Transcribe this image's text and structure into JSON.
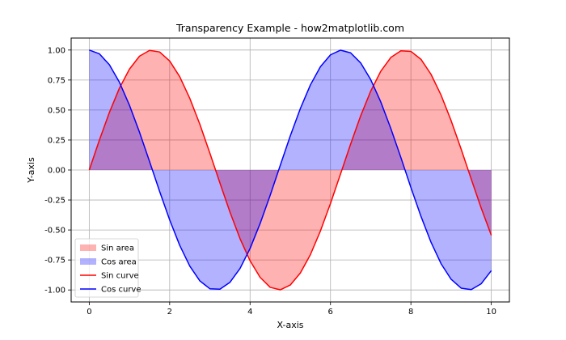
{
  "chart_data": {
    "type": "area",
    "title": "Transparency Example - how2matplotlib.com",
    "xlabel": "X-axis",
    "ylabel": "Y-axis",
    "xlim": [
      -0.45,
      10.45
    ],
    "ylim": [
      -1.1,
      1.1
    ],
    "xticks": [
      0,
      2,
      4,
      6,
      8,
      10
    ],
    "xtick_labels": [
      "0",
      "2",
      "4",
      "6",
      "8",
      "10"
    ],
    "yticks": [
      1.0,
      0.75,
      0.5,
      0.25,
      0.0,
      -0.25,
      -0.5,
      -0.75,
      -1.0
    ],
    "ytick_labels": [
      "1.00",
      "0.75",
      "0.50",
      "0.25",
      "0.00",
      "-0.25",
      "-0.50",
      "-0.75",
      "-1.00"
    ],
    "grid": true,
    "legend_position": "lower-left",
    "x": [
      0,
      0.25,
      0.5,
      0.75,
      1,
      1.25,
      1.5,
      1.75,
      2,
      2.25,
      2.5,
      2.75,
      3,
      3.25,
      3.5,
      3.75,
      4,
      4.25,
      4.5,
      4.75,
      5,
      5.25,
      5.5,
      5.75,
      6,
      6.25,
      6.5,
      6.75,
      7,
      7.25,
      7.5,
      7.75,
      8,
      8.25,
      8.5,
      8.75,
      9,
      9.25,
      9.5,
      9.75,
      10
    ],
    "series": [
      {
        "name": "Sin curve",
        "kind": "line",
        "color": "#ff0000",
        "values": [
          0,
          0.247,
          0.479,
          0.682,
          0.841,
          0.949,
          0.997,
          0.984,
          0.909,
          0.778,
          0.598,
          0.382,
          0.141,
          -0.108,
          -0.351,
          -0.572,
          -0.757,
          -0.895,
          -0.978,
          -0.999,
          -0.959,
          -0.859,
          -0.706,
          -0.508,
          -0.279,
          -0.033,
          0.215,
          0.451,
          0.657,
          0.823,
          0.938,
          0.994,
          0.989,
          0.923,
          0.798,
          0.625,
          0.412,
          0.174,
          -0.075,
          -0.319,
          -0.544
        ]
      },
      {
        "name": "Cos curve",
        "kind": "line",
        "color": "#0000ff",
        "values": [
          1,
          0.969,
          0.878,
          0.732,
          0.54,
          0.315,
          0.071,
          -0.178,
          -0.416,
          -0.628,
          -0.801,
          -0.924,
          -0.99,
          -0.994,
          -0.936,
          -0.821,
          -0.654,
          -0.446,
          -0.211,
          0.038,
          0.284,
          0.512,
          0.709,
          0.861,
          0.96,
          0.999,
          0.977,
          0.893,
          0.754,
          0.568,
          0.347,
          0.105,
          -0.146,
          -0.386,
          -0.602,
          -0.781,
          -0.911,
          -0.985,
          -0.997,
          -0.948,
          -0.839
        ]
      }
    ],
    "fills": [
      {
        "name": "Sin area",
        "of": "Sin curve",
        "color": "#ff0000",
        "alpha": 0.3
      },
      {
        "name": "Cos area",
        "of": "Cos curve",
        "color": "#0000ff",
        "alpha": 0.3
      }
    ],
    "legend": [
      {
        "label": "Sin area",
        "kind": "patch",
        "color": "#ff0000",
        "alpha": 0.3
      },
      {
        "label": "Cos area",
        "kind": "patch",
        "color": "#0000ff",
        "alpha": 0.3
      },
      {
        "label": "Sin curve",
        "kind": "line",
        "color": "#ff0000"
      },
      {
        "label": "Cos curve",
        "kind": "line",
        "color": "#0000ff"
      }
    ]
  }
}
